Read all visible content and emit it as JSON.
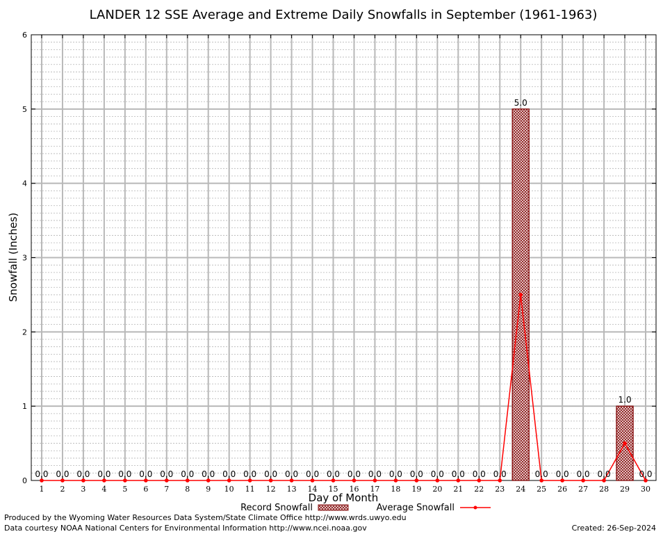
{
  "chart_data": {
    "type": "bar",
    "title": "LANDER 12 SSE Average and Extreme Daily Snowfalls in September (1961-1963)",
    "xlabel": "Day of Month",
    "ylabel": "Snowfall (Inches)",
    "ylim": [
      0,
      6
    ],
    "yticks": [
      "0",
      "1",
      "2",
      "3",
      "4",
      "5",
      "6"
    ],
    "grid": true,
    "legend_position": "bottom",
    "categories": [
      "1",
      "2",
      "3",
      "4",
      "5",
      "6",
      "7",
      "8",
      "9",
      "10",
      "11",
      "12",
      "13",
      "14",
      "15",
      "16",
      "17",
      "18",
      "19",
      "20",
      "21",
      "22",
      "23",
      "24",
      "25",
      "26",
      "27",
      "28",
      "29",
      "30"
    ],
    "series": [
      {
        "name": "Record Snowfall",
        "kind": "bar",
        "color": "#8b1a1a",
        "values": [
          0,
          0,
          0,
          0,
          0,
          0,
          0,
          0,
          0,
          0,
          0,
          0,
          0,
          0,
          0,
          0,
          0,
          0,
          0,
          0,
          0,
          0,
          0,
          5.0,
          0,
          0,
          0,
          0,
          1.0,
          0
        ],
        "labels": [
          "0.0",
          "0.0",
          "0.0",
          "0.0",
          "0.0",
          "0.0",
          "0.0",
          "0.0",
          "0.0",
          "0.0",
          "0.0",
          "0.0",
          "0.0",
          "0.0",
          "0.0",
          "0.0",
          "0.0",
          "0.0",
          "0.0",
          "0.0",
          "0.0",
          "0.0",
          "0.0",
          "5.0",
          "0.0",
          "0.0",
          "0.0",
          "0.0",
          "1.0",
          "0.0"
        ]
      },
      {
        "name": "Average Snowfall",
        "kind": "line",
        "color": "#ff0000",
        "values": [
          0,
          0,
          0,
          0,
          0,
          0,
          0,
          0,
          0,
          0,
          0,
          0,
          0,
          0,
          0,
          0,
          0,
          0,
          0,
          0,
          0,
          0,
          0,
          2.5,
          0,
          0,
          0,
          0,
          0.5,
          0
        ]
      }
    ]
  },
  "footer": {
    "line1": "Produced by the Wyoming Water Resources Data System/State Climate Office http://www.wrds.uwyo.edu",
    "line2": "Data courtesy NOAA National Centers for Environmental Information http://www.ncei.noaa.gov",
    "created": "Created:  26-Sep-2024"
  }
}
